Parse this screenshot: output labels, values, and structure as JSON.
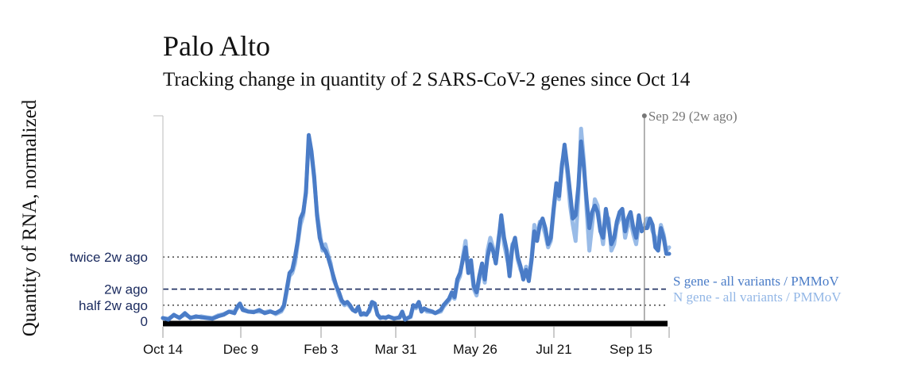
{
  "chart_data": {
    "type": "line",
    "title": "Palo Alto",
    "subtitle": "Tracking change in quantity of 2 SARS-CoV-2 genes since Oct 14",
    "ylabel": "Quantity of RNA, normalized",
    "x_ticks": [
      "Oct 14",
      "Dec 9",
      "Feb 3",
      "Mar 31",
      "May 26",
      "Jul 21",
      "Sep 15"
    ],
    "y_reference_lines": [
      {
        "label": "twice 2w ago",
        "value": 2.0,
        "style": "dotted"
      },
      {
        "label": "2w ago",
        "value": 1.0,
        "style": "dashed"
      },
      {
        "label": "half 2w ago",
        "value": 0.5,
        "style": "dotted"
      },
      {
        "label": "0",
        "value": 0,
        "style": "none"
      }
    ],
    "ylim": [
      0,
      6.4
    ],
    "marker": {
      "label": "Sep 29 (2w ago)",
      "day": 350
    },
    "grid": false,
    "legend_position": "right",
    "colors": {
      "s_gene": "#4a7cc7",
      "n_gene": "#93b7e6",
      "axis_text": "#1a2a5e",
      "marker": "#999999"
    },
    "series": [
      {
        "name": "S gene - all variants / PMMoV",
        "points": [
          [
            0,
            0.1
          ],
          [
            4,
            0.05
          ],
          [
            8,
            0.2
          ],
          [
            12,
            0.1
          ],
          [
            16,
            0.25
          ],
          [
            20,
            0.1
          ],
          [
            24,
            0.15
          ],
          [
            28,
            0.12
          ],
          [
            32,
            0.1
          ],
          [
            36,
            0.08
          ],
          [
            40,
            0.15
          ],
          [
            44,
            0.2
          ],
          [
            48,
            0.3
          ],
          [
            52,
            0.25
          ],
          [
            54,
            0.45
          ],
          [
            56,
            0.55
          ],
          [
            58,
            0.35
          ],
          [
            62,
            0.3
          ],
          [
            66,
            0.28
          ],
          [
            70,
            0.35
          ],
          [
            74,
            0.25
          ],
          [
            78,
            0.3
          ],
          [
            82,
            0.25
          ],
          [
            86,
            0.35
          ],
          [
            88,
            0.5
          ],
          [
            90,
            1.0
          ],
          [
            92,
            1.5
          ],
          [
            94,
            1.6
          ],
          [
            96,
            2.0
          ],
          [
            98,
            2.5
          ],
          [
            100,
            3.2
          ],
          [
            102,
            3.4
          ],
          [
            104,
            4.0
          ],
          [
            106,
            5.8
          ],
          [
            108,
            5.3
          ],
          [
            110,
            4.5
          ],
          [
            112,
            3.3
          ],
          [
            114,
            2.6
          ],
          [
            116,
            2.3
          ],
          [
            118,
            2.2
          ],
          [
            120,
            2.0
          ],
          [
            122,
            1.7
          ],
          [
            124,
            1.4
          ],
          [
            126,
            1.1
          ],
          [
            128,
            0.9
          ],
          [
            130,
            0.65
          ],
          [
            132,
            0.55
          ],
          [
            134,
            0.6
          ],
          [
            136,
            0.5
          ],
          [
            138,
            0.35
          ],
          [
            140,
            0.3
          ],
          [
            142,
            0.45
          ],
          [
            144,
            0.2
          ],
          [
            146,
            0.25
          ],
          [
            148,
            0.2
          ],
          [
            150,
            0.35
          ],
          [
            152,
            0.6
          ],
          [
            154,
            0.55
          ],
          [
            156,
            0.2
          ],
          [
            158,
            0.1
          ],
          [
            160,
            0.12
          ],
          [
            162,
            0.1
          ],
          [
            164,
            0.15
          ],
          [
            168,
            0.08
          ],
          [
            172,
            0.12
          ],
          [
            174,
            0.3
          ],
          [
            176,
            0.05
          ],
          [
            180,
            0.15
          ],
          [
            182,
            0.5
          ],
          [
            184,
            0.45
          ],
          [
            186,
            0.6
          ],
          [
            188,
            0.3
          ],
          [
            190,
            0.4
          ],
          [
            192,
            0.35
          ],
          [
            196,
            0.3
          ],
          [
            198,
            0.25
          ],
          [
            202,
            0.35
          ],
          [
            204,
            0.5
          ],
          [
            206,
            0.6
          ],
          [
            208,
            0.7
          ],
          [
            210,
            0.9
          ],
          [
            212,
            0.75
          ],
          [
            214,
            1.3
          ],
          [
            216,
            1.5
          ],
          [
            218,
            1.9
          ],
          [
            220,
            2.3
          ],
          [
            222,
            1.5
          ],
          [
            224,
            1.9
          ],
          [
            226,
            1.1
          ],
          [
            228,
            0.9
          ],
          [
            230,
            1.4
          ],
          [
            232,
            1.8
          ],
          [
            234,
            1.3
          ],
          [
            236,
            2.0
          ],
          [
            238,
            2.4
          ],
          [
            240,
            2.2
          ],
          [
            242,
            1.8
          ],
          [
            244,
            2.5
          ],
          [
            246,
            3.3
          ],
          [
            248,
            2.6
          ],
          [
            250,
            2.2
          ],
          [
            252,
            1.4
          ],
          [
            254,
            2.3
          ],
          [
            256,
            2.6
          ],
          [
            258,
            2.0
          ],
          [
            260,
            1.7
          ],
          [
            262,
            1.3
          ],
          [
            264,
            1.6
          ],
          [
            266,
            1.25
          ],
          [
            268,
            1.9
          ],
          [
            270,
            2.8
          ],
          [
            272,
            2.5
          ],
          [
            274,
            3.0
          ],
          [
            276,
            3.2
          ],
          [
            278,
            2.9
          ],
          [
            280,
            2.4
          ],
          [
            282,
            2.6
          ],
          [
            284,
            3.5
          ],
          [
            286,
            4.3
          ],
          [
            288,
            3.9
          ],
          [
            290,
            4.8
          ],
          [
            292,
            5.5
          ],
          [
            294,
            4.8
          ],
          [
            296,
            4.0
          ],
          [
            298,
            3.2
          ],
          [
            300,
            3.3
          ],
          [
            302,
            4.2
          ],
          [
            304,
            5.6
          ],
          [
            306,
            4.8
          ],
          [
            308,
            3.8
          ],
          [
            310,
            2.9
          ],
          [
            312,
            3.4
          ],
          [
            314,
            3.6
          ],
          [
            316,
            3.4
          ],
          [
            318,
            2.8
          ],
          [
            320,
            2.6
          ],
          [
            322,
            3.5
          ],
          [
            324,
            3.0
          ],
          [
            326,
            2.4
          ],
          [
            328,
            2.6
          ],
          [
            330,
            3.1
          ],
          [
            332,
            3.4
          ],
          [
            334,
            3.5
          ],
          [
            336,
            2.8
          ],
          [
            338,
            3.2
          ],
          [
            340,
            3.4
          ],
          [
            342,
            2.9
          ],
          [
            344,
            2.6
          ],
          [
            346,
            3.3
          ],
          [
            348,
            2.8
          ],
          [
            350,
            2.9
          ],
          [
            352,
            2.9
          ],
          [
            354,
            3.2
          ],
          [
            356,
            3.0
          ],
          [
            358,
            2.3
          ],
          [
            360,
            2.2
          ],
          [
            362,
            2.9
          ],
          [
            364,
            2.6
          ],
          [
            366,
            2.1
          ],
          [
            368,
            2.1
          ]
        ]
      },
      {
        "name": "N gene - all variants / PMMoV",
        "points": [
          [
            0,
            0.1
          ],
          [
            4,
            0.08
          ],
          [
            8,
            0.18
          ],
          [
            12,
            0.12
          ],
          [
            16,
            0.2
          ],
          [
            20,
            0.12
          ],
          [
            24,
            0.12
          ],
          [
            28,
            0.15
          ],
          [
            32,
            0.12
          ],
          [
            36,
            0.1
          ],
          [
            40,
            0.18
          ],
          [
            44,
            0.22
          ],
          [
            48,
            0.3
          ],
          [
            52,
            0.3
          ],
          [
            54,
            0.4
          ],
          [
            56,
            0.5
          ],
          [
            58,
            0.4
          ],
          [
            62,
            0.3
          ],
          [
            66,
            0.3
          ],
          [
            70,
            0.3
          ],
          [
            74,
            0.28
          ],
          [
            78,
            0.32
          ],
          [
            82,
            0.22
          ],
          [
            86,
            0.3
          ],
          [
            88,
            0.45
          ],
          [
            90,
            0.9
          ],
          [
            92,
            1.4
          ],
          [
            94,
            1.5
          ],
          [
            96,
            1.8
          ],
          [
            98,
            2.4
          ],
          [
            100,
            3.0
          ],
          [
            102,
            3.3
          ],
          [
            104,
            4.1
          ],
          [
            106,
            5.6
          ],
          [
            108,
            5.2
          ],
          [
            110,
            4.4
          ],
          [
            112,
            3.4
          ],
          [
            114,
            2.8
          ],
          [
            116,
            2.2
          ],
          [
            118,
            2.4
          ],
          [
            120,
            2.1
          ],
          [
            122,
            1.8
          ],
          [
            124,
            1.3
          ],
          [
            126,
            1.1
          ],
          [
            128,
            0.8
          ],
          [
            130,
            0.6
          ],
          [
            132,
            0.5
          ],
          [
            134,
            0.55
          ],
          [
            136,
            0.45
          ],
          [
            138,
            0.35
          ],
          [
            140,
            0.32
          ],
          [
            142,
            0.4
          ],
          [
            144,
            0.22
          ],
          [
            146,
            0.2
          ],
          [
            148,
            0.22
          ],
          [
            150,
            0.3
          ],
          [
            152,
            0.55
          ],
          [
            154,
            0.5
          ],
          [
            156,
            0.22
          ],
          [
            158,
            0.12
          ],
          [
            160,
            0.12
          ],
          [
            162,
            0.12
          ],
          [
            164,
            0.14
          ],
          [
            168,
            0.1
          ],
          [
            172,
            0.1
          ],
          [
            174,
            0.25
          ],
          [
            176,
            0.08
          ],
          [
            180,
            0.12
          ],
          [
            182,
            0.45
          ],
          [
            184,
            0.4
          ],
          [
            186,
            0.55
          ],
          [
            188,
            0.32
          ],
          [
            190,
            0.38
          ],
          [
            192,
            0.3
          ],
          [
            196,
            0.28
          ],
          [
            198,
            0.25
          ],
          [
            202,
            0.3
          ],
          [
            204,
            0.45
          ],
          [
            206,
            0.55
          ],
          [
            208,
            0.65
          ],
          [
            210,
            0.8
          ],
          [
            212,
            0.7
          ],
          [
            214,
            1.2
          ],
          [
            216,
            1.4
          ],
          [
            218,
            2.0
          ],
          [
            220,
            2.5
          ],
          [
            222,
            1.6
          ],
          [
            224,
            1.7
          ],
          [
            226,
            1.0
          ],
          [
            228,
            0.8
          ],
          [
            230,
            1.3
          ],
          [
            232,
            1.7
          ],
          [
            234,
            1.2
          ],
          [
            236,
            2.2
          ],
          [
            238,
            2.6
          ],
          [
            240,
            2.3
          ],
          [
            242,
            1.9
          ],
          [
            244,
            2.6
          ],
          [
            246,
            3.1
          ],
          [
            248,
            2.4
          ],
          [
            250,
            2.0
          ],
          [
            252,
            1.6
          ],
          [
            254,
            2.4
          ],
          [
            256,
            2.5
          ],
          [
            258,
            1.9
          ],
          [
            260,
            1.6
          ],
          [
            262,
            1.4
          ],
          [
            264,
            1.7
          ],
          [
            266,
            1.3
          ],
          [
            268,
            2.0
          ],
          [
            270,
            3.0
          ],
          [
            272,
            2.6
          ],
          [
            274,
            3.1
          ],
          [
            276,
            3.0
          ],
          [
            278,
            2.7
          ],
          [
            280,
            2.3
          ],
          [
            282,
            2.5
          ],
          [
            284,
            3.4
          ],
          [
            286,
            4.2
          ],
          [
            288,
            3.8
          ],
          [
            290,
            4.9
          ],
          [
            292,
            5.3
          ],
          [
            294,
            4.6
          ],
          [
            296,
            3.6
          ],
          [
            298,
            3.0
          ],
          [
            300,
            2.5
          ],
          [
            302,
            3.9
          ],
          [
            304,
            6.0
          ],
          [
            306,
            5.0
          ],
          [
            308,
            3.5
          ],
          [
            310,
            2.2
          ],
          [
            312,
            3.0
          ],
          [
            314,
            3.8
          ],
          [
            316,
            3.6
          ],
          [
            318,
            2.9
          ],
          [
            320,
            2.4
          ],
          [
            322,
            3.3
          ],
          [
            324,
            3.2
          ],
          [
            326,
            2.2
          ],
          [
            328,
            2.4
          ],
          [
            330,
            3.0
          ],
          [
            332,
            3.2
          ],
          [
            334,
            3.4
          ],
          [
            336,
            2.6
          ],
          [
            338,
            3.0
          ],
          [
            340,
            3.1
          ],
          [
            342,
            2.7
          ],
          [
            344,
            2.4
          ],
          [
            346,
            3.0
          ],
          [
            348,
            2.9
          ],
          [
            350,
            3.0
          ],
          [
            352,
            3.2
          ],
          [
            354,
            3.1
          ],
          [
            356,
            2.8
          ],
          [
            358,
            2.6
          ],
          [
            360,
            2.4
          ],
          [
            362,
            3.0
          ],
          [
            364,
            2.7
          ],
          [
            366,
            2.2
          ],
          [
            368,
            2.3
          ]
        ]
      }
    ]
  }
}
